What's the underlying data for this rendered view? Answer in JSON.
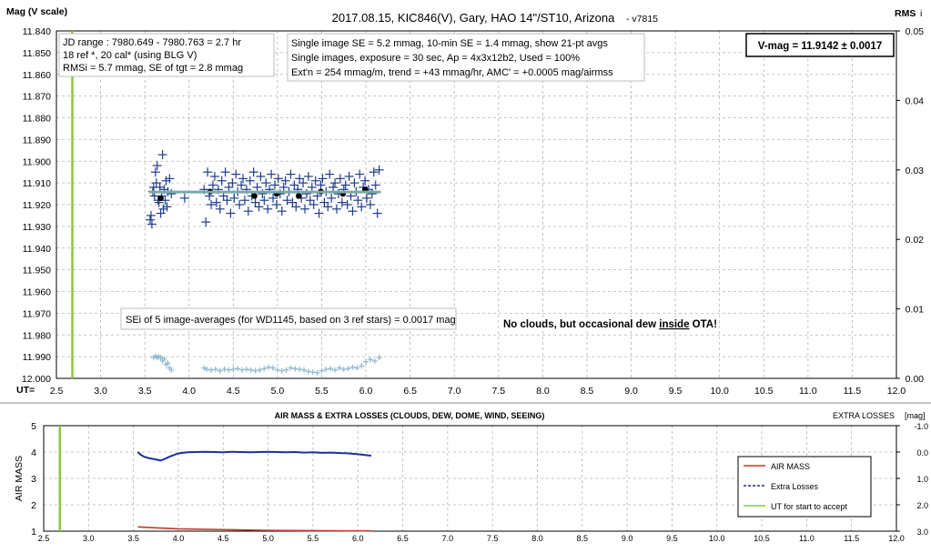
{
  "chart_data": [
    {
      "type": "scatter",
      "title": "2017.08.15,  KIC846(V),  Gary,  HAO 14\"/ST10, Arizona",
      "title_suffix": "- v7815",
      "ylabel": "Mag (V scale)",
      "y2label": "RMS",
      "y2label_suffix": "i",
      "xlabel": "UT=",
      "xlim": [
        2.5,
        12.0
      ],
      "ylim": [
        11.84,
        12.0
      ],
      "ylim_inverted": true,
      "y2lim": [
        0.0,
        0.05
      ],
      "x_ticks": [
        "2.5",
        "3.0",
        "3.5",
        "4.0",
        "4.5",
        "5.0",
        "5.5",
        "6.0",
        "6.5",
        "7.0",
        "7.5",
        "8.0",
        "8.5",
        "9.0",
        "9.5",
        "10.0",
        "10.5",
        "11.0",
        "11.5",
        "12.0"
      ],
      "y_ticks": [
        "11.840",
        "11.850",
        "11.860",
        "11.870",
        "11.880",
        "11.890",
        "11.900",
        "11.910",
        "11.920",
        "11.930",
        "11.940",
        "11.950",
        "11.960",
        "11.970",
        "11.980",
        "11.990",
        "12.000"
      ],
      "y2_ticks": [
        "0.00",
        "0.01",
        "0.02",
        "0.03",
        "0.04",
        "0.05"
      ],
      "grid": true,
      "start_line_ut": 2.68,
      "series": [
        {
          "marker": "plus",
          "color": "#1f3d8c",
          "x": [
            3.56,
            3.57,
            3.58,
            3.59,
            3.6,
            3.61,
            3.62,
            3.63,
            3.64,
            3.65,
            3.66,
            3.67,
            3.68,
            3.69,
            3.7,
            3.71,
            3.72,
            3.73,
            3.74,
            3.75,
            3.76,
            3.78,
            3.8,
            3.95,
            4.17,
            4.19,
            4.21,
            4.23,
            4.25,
            4.27,
            4.29,
            4.31,
            4.33,
            4.35,
            4.37,
            4.39,
            4.41,
            4.43,
            4.45,
            4.47,
            4.49,
            4.51,
            4.53,
            4.55,
            4.57,
            4.59,
            4.61,
            4.63,
            4.65,
            4.67,
            4.69,
            4.71,
            4.73,
            4.75,
            4.77,
            4.79,
            4.81,
            4.83,
            4.85,
            4.87,
            4.89,
            4.91,
            4.93,
            4.95,
            4.97,
            4.99,
            5.01,
            5.03,
            5.05,
            5.07,
            5.09,
            5.11,
            5.13,
            5.15,
            5.17,
            5.19,
            5.21,
            5.23,
            5.25,
            5.27,
            5.29,
            5.31,
            5.33,
            5.35,
            5.37,
            5.39,
            5.41,
            5.43,
            5.45,
            5.47,
            5.49,
            5.51,
            5.53,
            5.55,
            5.57,
            5.59,
            5.61,
            5.63,
            5.65,
            5.67,
            5.69,
            5.71,
            5.73,
            5.75,
            5.77,
            5.79,
            5.81,
            5.83,
            5.85,
            5.87,
            5.89,
            5.91,
            5.93,
            5.95,
            5.97,
            5.99,
            6.01,
            6.03,
            6.05,
            6.07,
            6.09,
            6.11,
            6.13,
            6.15
          ],
          "y": [
            11.927,
            11.925,
            11.929,
            11.914,
            11.912,
            11.916,
            11.905,
            11.91,
            11.902,
            11.918,
            11.919,
            11.912,
            11.924,
            11.916,
            11.897,
            11.922,
            11.913,
            11.918,
            11.909,
            11.921,
            11.914,
            11.908,
            11.915,
            11.917,
            11.913,
            11.928,
            11.905,
            11.916,
            11.92,
            11.911,
            11.907,
            11.919,
            11.913,
            11.922,
            11.909,
            11.916,
            11.905,
            11.918,
            11.912,
            11.924,
            11.91,
            11.917,
            11.906,
            11.914,
            11.92,
            11.911,
            11.908,
            11.918,
            11.913,
            11.923,
            11.909,
            11.916,
            11.905,
            11.919,
            11.912,
            11.921,
            11.907,
            11.915,
            11.918,
            11.91,
            11.922,
            11.913,
            11.906,
            11.917,
            11.911,
            11.92,
            11.908,
            11.915,
            11.923,
            11.912,
            11.909,
            11.918,
            11.914,
            11.906,
            11.919,
            11.911,
            11.921,
            11.913,
            11.908,
            11.917,
            11.91,
            11.922,
            11.915,
            11.907,
            11.918,
            11.912,
            11.92,
            11.909,
            11.916,
            11.924,
            11.911,
            11.908,
            11.919,
            11.914,
            11.921,
            11.906,
            11.917,
            11.912,
            11.91,
            11.922,
            11.915,
            11.908,
            11.919,
            11.913,
            11.911,
            11.92,
            11.907,
            11.916,
            11.923,
            11.91,
            11.914,
            11.918,
            11.906,
            11.921,
            11.912,
            11.909,
            11.917,
            11.913,
            11.92,
            11.915,
            11.905,
            11.911,
            11.924,
            11.904
          ]
        },
        {
          "marker": "dot",
          "color": "#000000",
          "x": [
            3.68,
            4.24,
            4.74,
            4.99,
            5.24,
            5.49,
            5.74,
            5.99
          ],
          "y": [
            11.917,
            11.914,
            11.916,
            11.915,
            11.916,
            11.914,
            11.915,
            11.913
          ]
        },
        {
          "marker": "line",
          "color": "#7aa9a9",
          "x": [
            3.55,
            6.17
          ],
          "y": [
            11.9142,
            11.9142
          ]
        },
        {
          "marker": "plus-small",
          "color": "#8fb8cc",
          "axis": "y2",
          "x": [
            3.6,
            3.62,
            3.64,
            3.66,
            3.68,
            3.7,
            3.72,
            3.74,
            3.76,
            3.78,
            3.8,
            4.17,
            4.2,
            4.25,
            4.3,
            4.35,
            4.4,
            4.45,
            4.5,
            4.55,
            4.6,
            4.65,
            4.7,
            4.75,
            4.8,
            4.85,
            4.9,
            4.95,
            5.0,
            5.05,
            5.1,
            5.15,
            5.2,
            5.25,
            5.3,
            5.35,
            5.4,
            5.45,
            5.5,
            5.55,
            5.6,
            5.65,
            5.7,
            5.75,
            5.8,
            5.85,
            5.9,
            5.95,
            6.0,
            6.05,
            6.1,
            6.15
          ],
          "y": [
            0.003,
            0.0032,
            0.003,
            0.0031,
            0.003,
            0.0025,
            0.0028,
            0.002,
            0.0022,
            0.0015,
            0.0012,
            0.0015,
            0.0013,
            0.0012,
            0.0013,
            0.0011,
            0.0013,
            0.0012,
            0.0013,
            0.0014,
            0.0012,
            0.0013,
            0.0012,
            0.0011,
            0.0012,
            0.0014,
            0.0016,
            0.0015,
            0.0012,
            0.0011,
            0.0012,
            0.0015,
            0.0014,
            0.0013,
            0.0012,
            0.001,
            0.0009,
            0.0008,
            0.0011,
            0.0013,
            0.0014,
            0.0012,
            0.0015,
            0.0013,
            0.0014,
            0.0016,
            0.0015,
            0.0018,
            0.0024,
            0.0027,
            0.0025,
            0.003
          ]
        }
      ],
      "annotations": [
        {
          "id": "jd",
          "lines": [
            "JD range : 7980.649 - 7980.763 =  2.7 hr",
            "18 ref *, 20 cal* (using BLG V)",
            "RMSi = 5.7 mmag, SE of tgt = 2.8 mmag"
          ]
        },
        {
          "id": "se",
          "lines": [
            "Single image SE = 5.2 mmag, 10-min SE = 1.4 mmag, show 21-pt avgs",
            "Single images, exposure = 30 sec, Ap = 4x3x12b2, Used = 100%",
            "Ext'n = 254 mmag/m, trend = +43 mmag/hr, AMC' = +0.0005 mag/airmss"
          ]
        },
        {
          "id": "vmag",
          "text": "V-mag = 11.9142 ± 0.0017"
        },
        {
          "id": "sei",
          "text": "SEi of 5 image-averages (for WD1145, based on 3 ref stars) = 0.0017 mag"
        },
        {
          "id": "clouds",
          "parts": [
            "No clouds, but occasional dew ",
            "inside",
            " OTA!"
          ]
        }
      ]
    },
    {
      "type": "line",
      "title": "AIR MASS & EXTRA LOSSES (CLOUDS, DEW, DOME, WIND, SEEING)",
      "ylabel": "AIR MASS",
      "y2label": "EXTRA LOSSES",
      "y2label_unit": "[mag]",
      "xlim": [
        2.5,
        12.0
      ],
      "ylim": [
        1,
        5
      ],
      "y2lim": [
        -1.0,
        3.0
      ],
      "y2_inverted": true,
      "x_ticks": [
        "2.5",
        "3.0",
        "3.5",
        "4.0",
        "4.5",
        "5.0",
        "5.5",
        "6.0",
        "6.5",
        "7.0",
        "7.5",
        "8.0",
        "8.5",
        "9.0",
        "9.5",
        "10.0",
        "10.5",
        "11.0",
        "11.5",
        "12.0"
      ],
      "y_ticks": [
        "1",
        "2",
        "3",
        "4",
        "5"
      ],
      "y2_ticks": [
        "-1.0",
        "0.0",
        "1.0",
        "2.0",
        "3.0"
      ],
      "grid": true,
      "start_line_ut": 2.68,
      "legend": {
        "placement": "right",
        "items": [
          "AIR MASS",
          "Extra Losses",
          "UT for start to accept"
        ]
      },
      "series": [
        {
          "name": "AIR MASS",
          "color": "#c0392b",
          "x": [
            3.55,
            3.8,
            4.0,
            4.5,
            5.0,
            5.5,
            6.0,
            6.15
          ],
          "y": [
            1.16,
            1.12,
            1.09,
            1.06,
            1.03,
            1.02,
            1.01,
            1.01
          ]
        },
        {
          "name": "Extra Losses",
          "color": "#1f2f99",
          "axis": "y2",
          "x": [
            3.55,
            3.58,
            3.62,
            3.66,
            3.7,
            3.75,
            3.8,
            3.85,
            3.9,
            4.0,
            4.1,
            4.2,
            4.3,
            4.4,
            4.5,
            4.6,
            4.7,
            4.8,
            4.9,
            5.0,
            5.1,
            5.2,
            5.3,
            5.4,
            5.5,
            5.6,
            5.7,
            5.8,
            5.9,
            6.0,
            6.05,
            6.1,
            6.15
          ],
          "y": [
            0.0,
            0.1,
            0.18,
            0.22,
            0.25,
            0.28,
            0.32,
            0.26,
            0.18,
            0.05,
            0.01,
            0.0,
            -0.01,
            0.0,
            0.01,
            -0.01,
            0.0,
            0.01,
            0.0,
            -0.01,
            0.0,
            0.01,
            0.0,
            0.02,
            0.01,
            0.03,
            0.02,
            0.04,
            0.05,
            0.08,
            0.1,
            0.12,
            0.14
          ]
        },
        {
          "name": "UT for start to accept",
          "color": "#8cc63f",
          "x": [
            2.68,
            2.68
          ],
          "y": [
            1,
            5
          ]
        }
      ]
    }
  ]
}
